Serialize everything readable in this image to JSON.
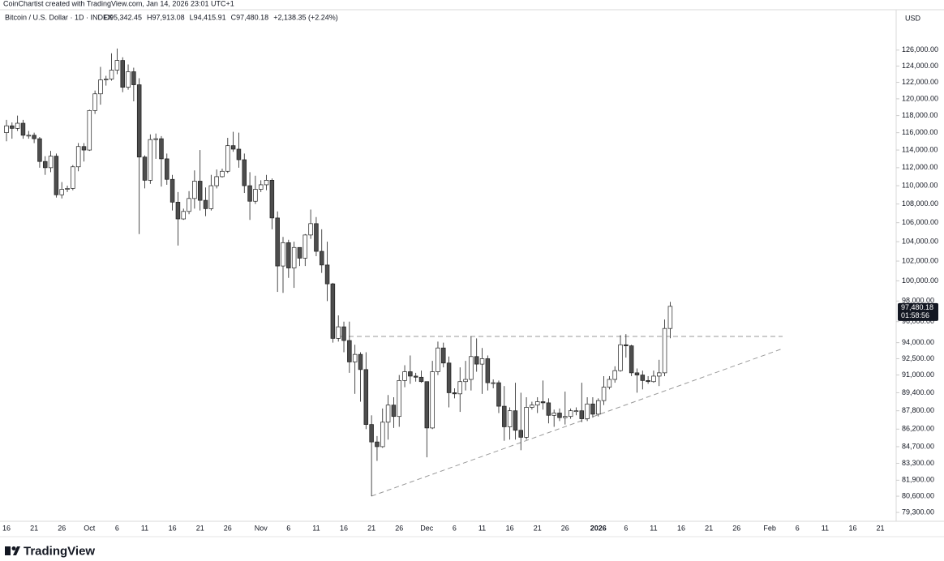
{
  "chart_data": {
    "type": "candlestick",
    "credit": "CoinChartist created with TradingView.com, Jan 14, 2026 23:01 UTC+1",
    "title": "Bitcoin / U.S. Dollar · 1D · INDEX",
    "ohlc_labels": [
      "O95,342.45",
      "H97,913.08",
      "L94,415.91",
      "C97,480.18",
      "+2,138.35 (+2.24%)"
    ],
    "currency": "USD",
    "last_price_label": "97,480.18",
    "countdown": "01:58:56",
    "brand": "TradingView",
    "log_scale": true,
    "up_color": "#ffffff",
    "down_color": "#4d4d4d",
    "border_color": "#1f1f1f",
    "ylim": [
      78600,
      131200
    ],
    "yticks": [
      {
        "value": 126000,
        "label": "126,000.00"
      },
      {
        "value": 124000,
        "label": "124,000.00"
      },
      {
        "value": 122000,
        "label": "122,000.00"
      },
      {
        "value": 120000,
        "label": "120,000.00"
      },
      {
        "value": 118000,
        "label": "118,000.00"
      },
      {
        "value": 116000,
        "label": "116,000.00"
      },
      {
        "value": 114000,
        "label": "114,000.00"
      },
      {
        "value": 112000,
        "label": "112,000.00"
      },
      {
        "value": 110000,
        "label": "110,000.00"
      },
      {
        "value": 108000,
        "label": "108,000.00"
      },
      {
        "value": 106000,
        "label": "106,000.00"
      },
      {
        "value": 104000,
        "label": "104,000.00"
      },
      {
        "value": 102000,
        "label": "102,000.00"
      },
      {
        "value": 100000,
        "label": "100,000.00"
      },
      {
        "value": 98000,
        "label": "98,000.00"
      },
      {
        "value": 96000,
        "label": "96,000.00"
      },
      {
        "value": 94000,
        "label": "94,000.00"
      },
      {
        "value": 92500,
        "label": "92,500.00"
      },
      {
        "value": 91000,
        "label": "91,000.00"
      },
      {
        "value": 89400,
        "label": "89,400.00"
      },
      {
        "value": 87800,
        "label": "87,800.00"
      },
      {
        "value": 86200,
        "label": "86,200.00"
      },
      {
        "value": 84700,
        "label": "84,700.00"
      },
      {
        "value": 83300,
        "label": "83,300.00"
      },
      {
        "value": 81900,
        "label": "81,900.00"
      },
      {
        "value": 80600,
        "label": "80,600.00"
      },
      {
        "value": 79300,
        "label": "79,300.00"
      }
    ],
    "categories": [
      "16",
      null,
      null,
      null,
      null,
      "21",
      null,
      null,
      null,
      null,
      "26",
      null,
      null,
      null,
      null,
      "Oct",
      null,
      null,
      null,
      null,
      "6",
      null,
      null,
      null,
      null,
      "11",
      null,
      null,
      null,
      null,
      "16",
      null,
      null,
      null,
      null,
      "21",
      null,
      null,
      null,
      null,
      "26",
      null,
      null,
      null,
      null,
      null,
      "Nov",
      null,
      null,
      null,
      null,
      "6",
      null,
      null,
      null,
      null,
      "11",
      null,
      null,
      null,
      null,
      "16",
      null,
      null,
      null,
      null,
      "21",
      null,
      null,
      null,
      null,
      "26",
      null,
      null,
      null,
      null,
      "Dec",
      null,
      null,
      null,
      null,
      "6",
      null,
      null,
      null,
      null,
      "11",
      null,
      null,
      null,
      null,
      "16",
      null,
      null,
      null,
      null,
      "21",
      null,
      null,
      null,
      null,
      "26",
      null,
      null,
      null,
      null,
      null,
      "2026",
      null,
      null,
      null,
      null,
      "6",
      null,
      null,
      null,
      null,
      "11",
      null,
      null,
      null,
      null,
      "16",
      null,
      null,
      null,
      null,
      "21",
      null,
      null,
      null,
      null,
      "26",
      null,
      null,
      null,
      null,
      null,
      "Feb",
      null,
      null,
      null,
      null,
      "6",
      null,
      null,
      null,
      null,
      "11",
      null,
      null,
      null,
      null,
      "16",
      null,
      null,
      null,
      null,
      "21"
    ],
    "open": [
      116000,
      116800,
      116500,
      117100,
      115700,
      115700,
      115300,
      112700,
      112000,
      113300,
      109000,
      109600,
      109700,
      112100,
      114400,
      114000,
      118600,
      120600,
      122300,
      122400,
      123500,
      124700,
      121400,
      123300,
      121700,
      113200,
      110600,
      115200,
      115300,
      113000,
      110700,
      108200,
      106400,
      107200,
      108600,
      110500,
      108400,
      107500,
      110000,
      111000,
      111600,
      114500,
      114100,
      112900,
      110000,
      108300,
      109600,
      110100,
      110600,
      106500,
      101500,
      103900,
      101300,
      103400,
      102300,
      104700,
      105900,
      103000,
      101600,
      99700,
      94400,
      95500,
      94200,
      92200,
      92900,
      91500,
      86600,
      85100,
      84700,
      86800,
      88300,
      87300,
      90500,
      91300,
      90900,
      90800,
      90400,
      86300,
      91300,
      93500,
      92100,
      89400,
      89300,
      90400,
      90600,
      92700,
      92000,
      92500,
      90300,
      90300,
      88200,
      86400,
      87800,
      86100,
      85500,
      88100,
      88300,
      88600,
      88500,
      87400,
      87600,
      87200,
      87300,
      87800,
      87800,
      87100,
      88400,
      87500,
      88700,
      89900,
      90600,
      91400,
      93800,
      93700,
      91200,
      91000,
      90500,
      90400,
      90900,
      91200,
      95342.45,
      null,
      null,
      null,
      null,
      null,
      null,
      null,
      null,
      null,
      null,
      null,
      null,
      null,
      null,
      null,
      null,
      null,
      null,
      null,
      null,
      null,
      null,
      null,
      null,
      null,
      null,
      null,
      null,
      null,
      null,
      null,
      null,
      null,
      null,
      null,
      null,
      null,
      null
    ],
    "high": [
      117500,
      117200,
      118000,
      117500,
      116200,
      116000,
      115500,
      113300,
      113900,
      113600,
      110400,
      110000,
      112300,
      114800,
      114800,
      118700,
      121000,
      123900,
      122800,
      125600,
      126200,
      125100,
      124200,
      123800,
      122500,
      113400,
      115800,
      115900,
      115600,
      113600,
      111200,
      109300,
      107500,
      109400,
      111700,
      114000,
      109800,
      111200,
      111800,
      111900,
      115400,
      116100,
      116000,
      113600,
      111500,
      111100,
      110600,
      111200,
      110800,
      107200,
      104500,
      104200,
      104000,
      103400,
      104800,
      107400,
      106600,
      105300,
      104000,
      99800,
      96600,
      96000,
      96000,
      93800,
      93100,
      93100,
      87400,
      85600,
      88000,
      89200,
      89000,
      91000,
      91900,
      92800,
      91200,
      91400,
      90400,
      92300,
      94100,
      94000,
      92700,
      89800,
      91700,
      92300,
      94600,
      94400,
      93500,
      92800,
      90600,
      90500,
      90000,
      88100,
      90300,
      89400,
      89000,
      88600,
      89000,
      90500,
      88900,
      87900,
      88000,
      89500,
      88000,
      88100,
      90300,
      89000,
      89000,
      88900,
      90900,
      90900,
      91800,
      94700,
      94800,
      93800,
      91600,
      91400,
      90900,
      91400,
      92400,
      96200,
      97913.08,
      null,
      null,
      null,
      null,
      null,
      null,
      null,
      null,
      null,
      null,
      null,
      null,
      null,
      null,
      null,
      null,
      null,
      null,
      null,
      null,
      null,
      null,
      null,
      null,
      null,
      null,
      null,
      null,
      null,
      null,
      null,
      null,
      null,
      null,
      null,
      null,
      null,
      null
    ],
    "low": [
      115000,
      115300,
      116200,
      115300,
      115300,
      114800,
      112000,
      111200,
      111500,
      108700,
      108600,
      109300,
      109500,
      111600,
      112700,
      113900,
      118200,
      119300,
      121600,
      122200,
      123000,
      120800,
      121100,
      119700,
      104800,
      109700,
      110200,
      113000,
      109900,
      110100,
      107300,
      103600,
      106300,
      106900,
      107500,
      107300,
      106700,
      107300,
      109700,
      110900,
      111400,
      113800,
      112000,
      109200,
      106300,
      108000,
      109300,
      109500,
      105300,
      98900,
      98800,
      100300,
      99300,
      101500,
      101500,
      104300,
      102500,
      100800,
      98000,
      94000,
      94100,
      93100,
      91200,
      89300,
      88600,
      86200,
      80600,
      83500,
      84600,
      85300,
      86300,
      86400,
      89900,
      90200,
      90400,
      90300,
      83800,
      86200,
      91000,
      91700,
      88100,
      88900,
      87700,
      89600,
      89600,
      91300,
      89300,
      89600,
      89800,
      87600,
      85200,
      85300,
      85300,
      84400,
      85300,
      87900,
      87600,
      87900,
      86700,
      86400,
      86900,
      86600,
      87100,
      87400,
      86800,
      86900,
      87200,
      87300,
      88300,
      89700,
      90300,
      91300,
      92600,
      90900,
      89400,
      89700,
      90200,
      90300,
      90000,
      90900,
      94415.91,
      null,
      null,
      null,
      null,
      null,
      null,
      null,
      null,
      null,
      null,
      null,
      null,
      null,
      null,
      null,
      null,
      null,
      null,
      null,
      null,
      null,
      null,
      null,
      null,
      null,
      null,
      null,
      null,
      null,
      null,
      null,
      null,
      null,
      null,
      null,
      null,
      null,
      null
    ],
    "close": [
      116800,
      116500,
      117100,
      115700,
      115700,
      115300,
      112700,
      112000,
      113300,
      109000,
      109600,
      109700,
      112100,
      114400,
      114000,
      118600,
      120600,
      122300,
      122400,
      123500,
      124700,
      121400,
      123300,
      121700,
      113200,
      110600,
      115200,
      115300,
      113000,
      110700,
      108200,
      106400,
      107200,
      108600,
      110500,
      108400,
      107500,
      110000,
      111000,
      111600,
      114500,
      114100,
      112900,
      110000,
      108300,
      109600,
      110100,
      110600,
      106500,
      101500,
      103900,
      101300,
      103400,
      102300,
      104700,
      105900,
      103000,
      101600,
      99700,
      94400,
      95500,
      94200,
      92200,
      92900,
      91500,
      86600,
      85100,
      84700,
      86800,
      88300,
      87300,
      90500,
      91300,
      90900,
      90800,
      90400,
      86300,
      91300,
      93500,
      92100,
      89400,
      89300,
      90400,
      90600,
      92700,
      92000,
      92500,
      90300,
      90300,
      88200,
      86400,
      87800,
      86100,
      85500,
      88100,
      88300,
      88600,
      88500,
      87400,
      87600,
      87200,
      87300,
      87800,
      87800,
      87100,
      88400,
      87500,
      88700,
      89900,
      90600,
      91400,
      93800,
      93700,
      91200,
      91000,
      90500,
      90400,
      90900,
      91200,
      95342.45,
      97480.18,
      null,
      null,
      null,
      null,
      null,
      null,
      null,
      null,
      null,
      null,
      null,
      null,
      null,
      null,
      null,
      null,
      null,
      null,
      null,
      null,
      null,
      null,
      null,
      null,
      null,
      null,
      null,
      null,
      null,
      null,
      null,
      null,
      null,
      null,
      null,
      null,
      null,
      null
    ]
  }
}
